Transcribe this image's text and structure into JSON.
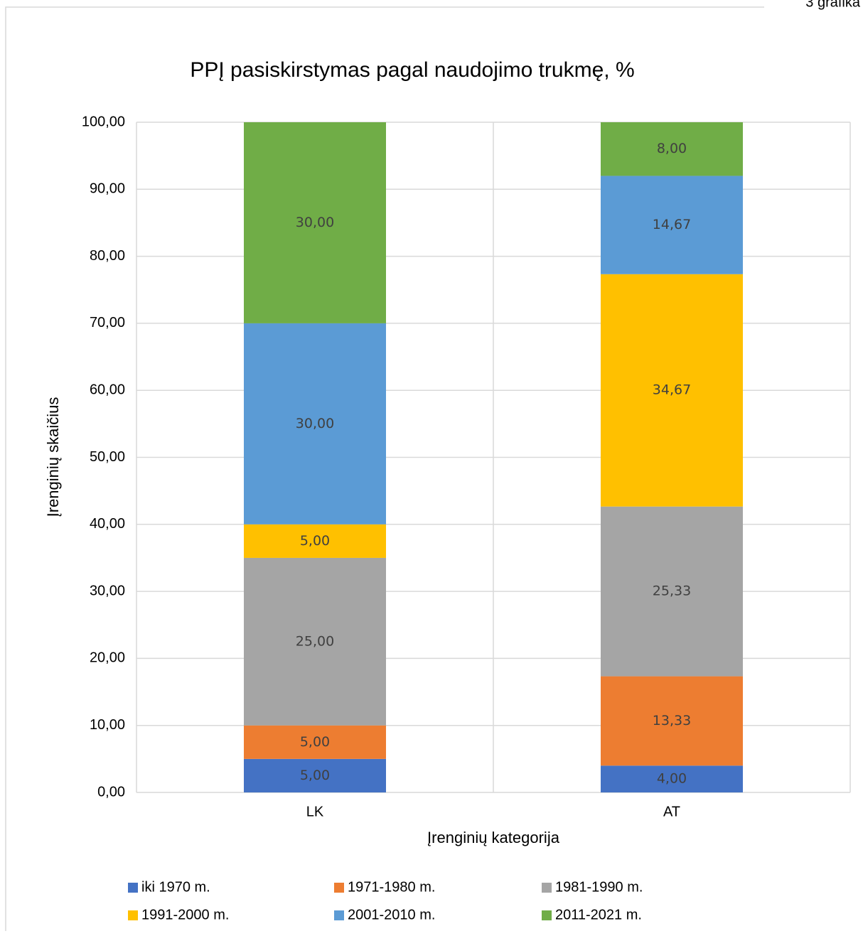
{
  "corner_label": "3 grafika",
  "chart_data": {
    "type": "stacked_bar",
    "title": "PPĮ pasiskirstymas pagal naudojimo trukmę, %",
    "x_label": "Įrenginių kategorija",
    "y_label": "Įrenginių skaičius",
    "categories": [
      "LK",
      "AT"
    ],
    "series": [
      {
        "name": "iki 1970 m.",
        "color": "#4472c4",
        "values": [
          5,
          4
        ],
        "value_labels": [
          "5,00",
          "4,00"
        ]
      },
      {
        "name": "1971-1980 m.",
        "color": "#ed7d31",
        "values": [
          5,
          13.33
        ],
        "value_labels": [
          "5,00",
          "13,33"
        ]
      },
      {
        "name": "1981-1990 m.",
        "color": "#a5a5a5",
        "values": [
          25,
          25.33
        ],
        "value_labels": [
          "25,00",
          "25,33"
        ]
      },
      {
        "name": "1991-2000 m.",
        "color": "#ffc000",
        "values": [
          5,
          34.67
        ],
        "value_labels": [
          "5,00",
          "34,67"
        ]
      },
      {
        "name": "2001-2010 m.",
        "color": "#5b9bd5",
        "values": [
          30,
          14.67
        ],
        "value_labels": [
          "30,00",
          "14,67"
        ]
      },
      {
        "name": "2011-2021 m.",
        "color": "#70ad47",
        "values": [
          30,
          8
        ],
        "value_labels": [
          "30,00",
          "8,00"
        ]
      }
    ],
    "ylim": [
      0,
      100
    ],
    "yticks": [
      {
        "value": 0,
        "label": "0,00"
      },
      {
        "value": 10,
        "label": "10,00"
      },
      {
        "value": 20,
        "label": "20,00"
      },
      {
        "value": 30,
        "label": "30,00"
      },
      {
        "value": 40,
        "label": "40,00"
      },
      {
        "value": 50,
        "label": "50,00"
      },
      {
        "value": 60,
        "label": "60,00"
      },
      {
        "value": 70,
        "label": "70,00"
      },
      {
        "value": 80,
        "label": "80,00"
      },
      {
        "value": 90,
        "label": "90,00"
      },
      {
        "value": 100,
        "label": "100,00"
      }
    ],
    "grid": true,
    "legend": "bottom"
  }
}
